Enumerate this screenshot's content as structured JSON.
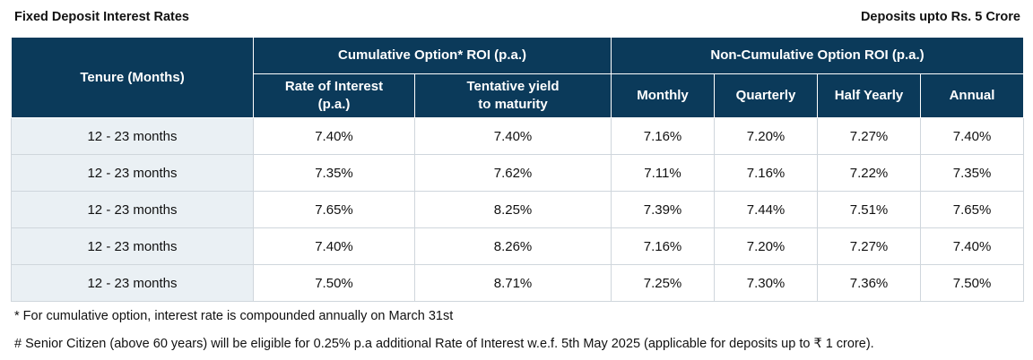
{
  "header": {
    "title": "Fixed Deposit Interest Rates",
    "subtitle": "Deposits upto Rs. 5 Crore"
  },
  "table": {
    "tenure_header": "Tenure (Months)",
    "group_cumulative": "Cumulative Option* ROI (p.a.)",
    "group_noncumulative": "Non-Cumulative Option ROI (p.a.)",
    "col_rate_line1": "Rate of Interest",
    "col_rate_line2": "(p.a.)",
    "col_yield_line1": "Tentative yield",
    "col_yield_line2": "to maturity",
    "col_monthly": "Monthly",
    "col_quarterly": "Quarterly",
    "col_half_yearly": "Half Yearly",
    "col_annual": "Annual",
    "rows": [
      {
        "tenure": "12 - 23 months",
        "rate": "7.40%",
        "yield": "7.40%",
        "monthly": "7.16%",
        "quarterly": "7.20%",
        "half_yearly": "7.27%",
        "annual": "7.40%"
      },
      {
        "tenure": "12 - 23 months",
        "rate": "7.35%",
        "yield": "7.62%",
        "monthly": "7.11%",
        "quarterly": "7.16%",
        "half_yearly": "7.22%",
        "annual": "7.35%"
      },
      {
        "tenure": "12 - 23 months",
        "rate": "7.65%",
        "yield": "8.25%",
        "monthly": "7.39%",
        "quarterly": "7.44%",
        "half_yearly": "7.51%",
        "annual": "7.65%"
      },
      {
        "tenure": "12 - 23 months",
        "rate": "7.40%",
        "yield": "8.26%",
        "monthly": "7.16%",
        "quarterly": "7.20%",
        "half_yearly": "7.27%",
        "annual": "7.40%"
      },
      {
        "tenure": "12 - 23 months",
        "rate": "7.50%",
        "yield": "8.71%",
        "monthly": "7.25%",
        "quarterly": "7.30%",
        "half_yearly": "7.36%",
        "annual": "7.50%"
      }
    ]
  },
  "footnotes": {
    "cumulative": "* For cumulative option, interest rate is compounded annually on March 31st",
    "senior": "# Senior Citizen (above 60 years) will be eligible for 0.25% p.a additional Rate of Interest w.e.f. 5th May 2025 (applicable for deposits up to ₹ 1 crore)."
  },
  "colors": {
    "header_bg": "#0b3a5a",
    "tenure_bg": "#eaf0f4"
  }
}
